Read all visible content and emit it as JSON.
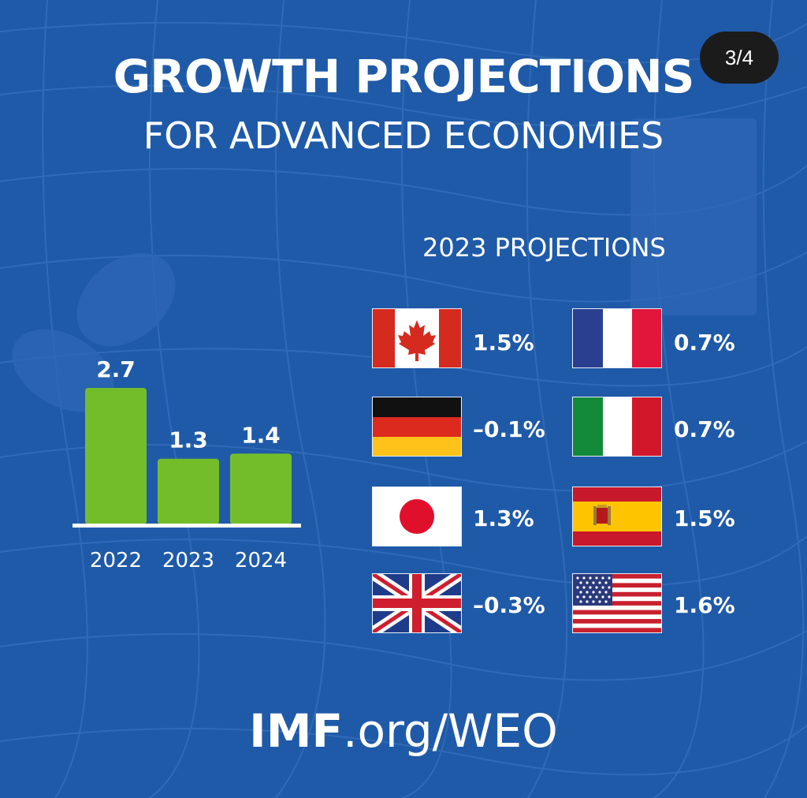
{
  "header": {
    "title": "GROWTH PROJECTIONS",
    "subtitle": "FOR ADVANCED ECONOMIES",
    "page_indicator": "3/4"
  },
  "projections": {
    "heading": "2023 PROJECTIONS",
    "countries": [
      {
        "flag": "canada-flag",
        "value": "1.5%"
      },
      {
        "flag": "germany-flag",
        "value": "–0.1%"
      },
      {
        "flag": "japan-flag",
        "value": "1.3%"
      },
      {
        "flag": "uk-flag",
        "value": "–0.3%"
      },
      {
        "flag": "france-flag",
        "value": "0.7%"
      },
      {
        "flag": "italy-flag",
        "value": "0.7%"
      },
      {
        "flag": "spain-flag",
        "value": "1.5%"
      },
      {
        "flag": "usa-flag",
        "value": "1.6%"
      }
    ]
  },
  "footer": {
    "bold": "IMF",
    "rest": ".org/WEO"
  },
  "colors": {
    "background": "#1f5aa8",
    "bar": "#74bd2a",
    "text": "#ffffff"
  },
  "chart_data": {
    "type": "bar",
    "categories": [
      "2022",
      "2023",
      "2024"
    ],
    "values": [
      2.7,
      1.3,
      1.4
    ],
    "data_labels": [
      "2.7",
      "1.3",
      "1.4"
    ],
    "title": "",
    "xlabel": "",
    "ylabel": "",
    "ylim": [
      0,
      2.7
    ],
    "grid": false
  }
}
